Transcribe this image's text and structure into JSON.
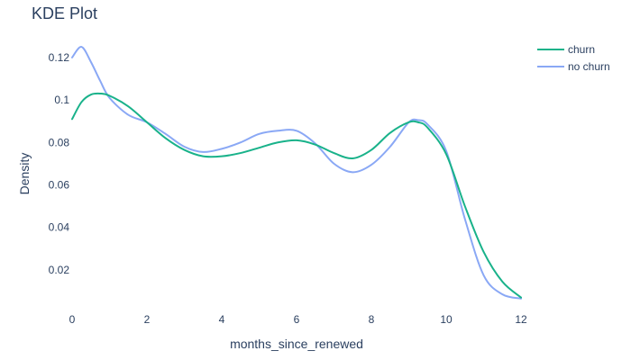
{
  "chart_data": {
    "type": "line",
    "title": "KDE Plot",
    "xlabel": "months_since_renewed",
    "ylabel": "Density",
    "xlim": [
      0,
      12
    ],
    "ylim": [
      0.003,
      0.128
    ],
    "x_ticks": [
      0,
      2,
      4,
      6,
      8,
      10,
      12
    ],
    "x_tick_labels": [
      "0",
      "2",
      "4",
      "6",
      "8",
      "10",
      "12"
    ],
    "y_ticks": [
      0.02,
      0.04,
      0.06,
      0.08,
      0.1,
      0.12
    ],
    "y_tick_labels": [
      "0.02",
      "0.04",
      "0.06",
      "0.08",
      "0.1",
      "0.12"
    ],
    "grid": false,
    "legend_position": "top-right",
    "x": [
      0,
      0.25,
      0.5,
      0.75,
      1,
      1.5,
      2,
      2.5,
      3,
      3.5,
      4,
      4.5,
      5,
      5.5,
      6,
      6.5,
      7,
      7.5,
      8,
      8.5,
      9,
      9.25,
      9.5,
      10,
      10.5,
      11,
      11.5,
      12
    ],
    "series": [
      {
        "name": "churn",
        "color": "#19b28a",
        "values": [
          0.091,
          0.099,
          0.1025,
          0.103,
          0.102,
          0.097,
          0.0895,
          0.082,
          0.0765,
          0.0735,
          0.0735,
          0.075,
          0.0775,
          0.08,
          0.081,
          0.079,
          0.075,
          0.0725,
          0.0765,
          0.0845,
          0.0895,
          0.0895,
          0.087,
          0.0745,
          0.05,
          0.0285,
          0.0145,
          0.007
        ]
      },
      {
        "name": "no churn",
        "color": "#8aa8f5",
        "values": [
          0.12,
          0.125,
          0.118,
          0.109,
          0.101,
          0.093,
          0.0895,
          0.084,
          0.078,
          0.0755,
          0.077,
          0.08,
          0.084,
          0.0855,
          0.0855,
          0.0795,
          0.07,
          0.066,
          0.0695,
          0.078,
          0.0895,
          0.0905,
          0.0885,
          0.076,
          0.044,
          0.0175,
          0.0085,
          0.0065
        ]
      }
    ]
  }
}
